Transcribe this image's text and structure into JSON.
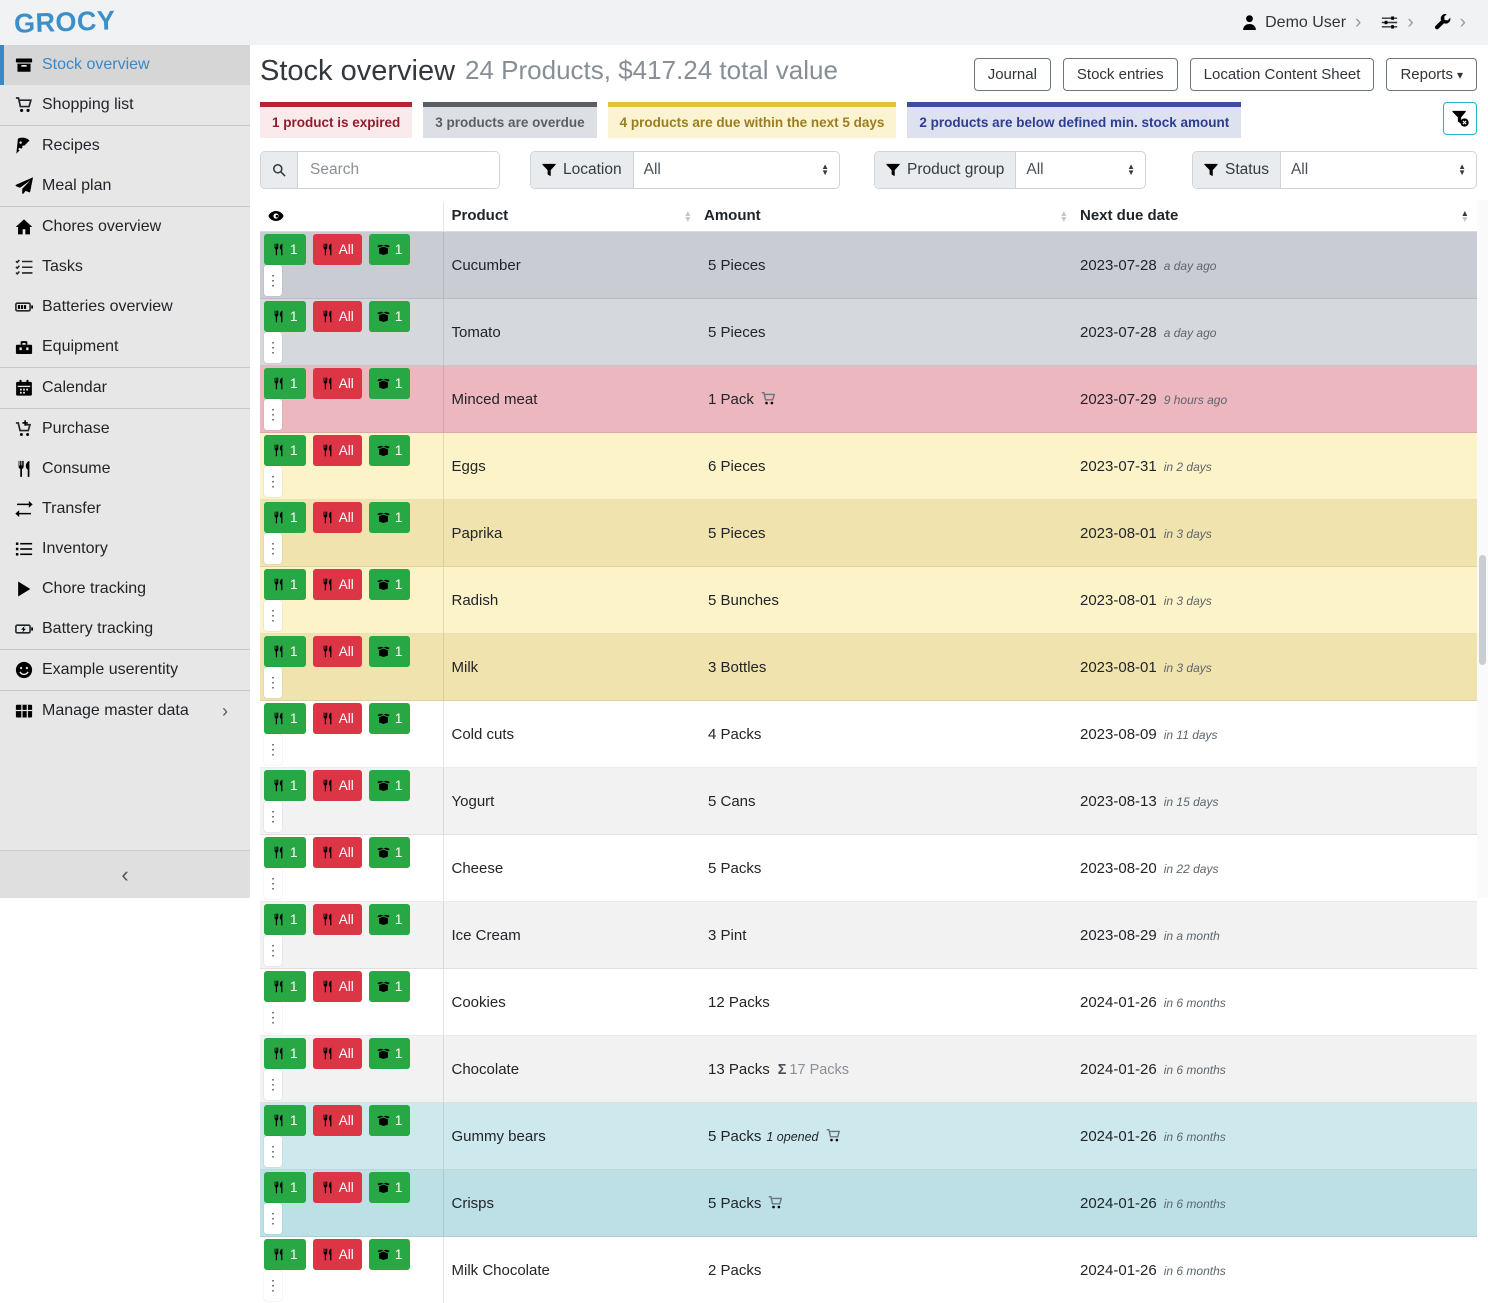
{
  "brand": {
    "name": "GROCY"
  },
  "glyphs": {
    "sigma": "Σ",
    "ellipsis": "⋮",
    "chevron": "›",
    "collapse": "‹",
    "caret_down": "▾",
    "caret_up_small": "▲",
    "caret_down_small": "▼"
  },
  "topbar": {
    "user_label": "Demo User"
  },
  "sidebar": {
    "items": [
      {
        "label": "Stock overview",
        "icon": "box-icon",
        "active": true
      },
      {
        "label": "Shopping list",
        "icon": "cart-icon",
        "divider_after": true
      },
      {
        "label": "Recipes",
        "icon": "pizza-icon"
      },
      {
        "label": "Meal plan",
        "icon": "paper-plane-icon",
        "divider_after": true
      },
      {
        "label": "Chores overview",
        "icon": "home-icon"
      },
      {
        "label": "Tasks",
        "icon": "checklist-icon"
      },
      {
        "label": "Batteries overview",
        "icon": "battery-icon"
      },
      {
        "label": "Equipment",
        "icon": "toolbox-icon",
        "divider_after": true
      },
      {
        "label": "Calendar",
        "icon": "calendar-icon",
        "divider_after": true
      },
      {
        "label": "Purchase",
        "icon": "cart-plus-icon"
      },
      {
        "label": "Consume",
        "icon": "utensils-icon"
      },
      {
        "label": "Transfer",
        "icon": "transfer-icon"
      },
      {
        "label": "Inventory",
        "icon": "list-icon"
      },
      {
        "label": "Chore tracking",
        "icon": "play-icon"
      },
      {
        "label": "Battery tracking",
        "icon": "battery-bolt-icon",
        "divider_after": true
      },
      {
        "label": "Example userentity",
        "icon": "smiley-icon",
        "divider_after": true
      },
      {
        "label": "Manage master data",
        "icon": "table-icon",
        "chevron": true
      }
    ]
  },
  "page": {
    "title": "Stock overview",
    "subtitle": "24 Products, $417.24 total value"
  },
  "actions": [
    {
      "label": "Journal"
    },
    {
      "label": "Stock entries"
    },
    {
      "label": "Location Content Sheet"
    },
    {
      "label": "Reports",
      "dropdown": true
    }
  ],
  "banners": [
    {
      "text": "1 product is expired",
      "border": "#b5242f",
      "bg": "#fbeaec",
      "color": "#8f1d2b"
    },
    {
      "text": "3 products are overdue",
      "border": "#595f64",
      "bg": "#dcdfe3",
      "color": "#575f66"
    },
    {
      "text": "4 products are due within the next 5 days",
      "border": "#e5c03d",
      "bg": "#fcf3d2",
      "color": "#9a7d22"
    },
    {
      "text": "2 products are below defined min. stock amount",
      "border": "#3c4f9e",
      "bg": "#dde1f0",
      "color": "#2c3e8d"
    }
  ],
  "clear_filter_color": "#1fb9c9",
  "filters": {
    "search_placeholder": "Search",
    "groups": [
      {
        "label": "Location",
        "value": "All"
      },
      {
        "label": "Product group",
        "value": "All"
      },
      {
        "label": "Status",
        "value": "All"
      }
    ]
  },
  "table": {
    "headers": [
      {
        "label": ""
      },
      {
        "label": "Product",
        "sort": "none"
      },
      {
        "label": "Amount",
        "sort": "none"
      },
      {
        "label": "Next due date",
        "sort": "asc"
      }
    ],
    "row_buttons": {
      "consume_one": "1",
      "consume_all": "All",
      "open_one": "1"
    },
    "rows": [
      {
        "product": "Cucumber",
        "amount": "5 Pieces",
        "date": "2023-07-28",
        "due": "a day ago",
        "bg": "#c9ccd2"
      },
      {
        "product": "Tomato",
        "amount": "5 Pieces",
        "date": "2023-07-28",
        "due": "a day ago",
        "bg": "#d5d8dd"
      },
      {
        "product": "Minced meat",
        "amount": "1 Pack",
        "cart": true,
        "date": "2023-07-29",
        "due": "9 hours ago",
        "bg": "#ecb7bf"
      },
      {
        "product": "Eggs",
        "amount": "6 Pieces",
        "date": "2023-07-31",
        "due": "in 2 days",
        "bg": "#fdf3c8"
      },
      {
        "product": "Paprika",
        "amount": "5 Pieces",
        "date": "2023-08-01",
        "due": "in 3 days",
        "bg": "#f1e3ae"
      },
      {
        "product": "Radish",
        "amount": "5 Bunches",
        "date": "2023-08-01",
        "due": "in 3 days",
        "bg": "#fdf3c8"
      },
      {
        "product": "Milk",
        "amount": "3 Bottles",
        "date": "2023-08-01",
        "due": "in 3 days",
        "bg": "#f1e3ae"
      },
      {
        "product": "Cold cuts",
        "amount": "4 Packs",
        "date": "2023-08-09",
        "due": "in 11 days",
        "bg": "#ffffff"
      },
      {
        "product": "Yogurt",
        "amount": "5 Cans",
        "date": "2023-08-13",
        "due": "in 15 days",
        "bg": "#f2f2f2"
      },
      {
        "product": "Cheese",
        "amount": "5 Packs",
        "date": "2023-08-20",
        "due": "in 22 days",
        "bg": "#ffffff"
      },
      {
        "product": "Ice Cream",
        "amount": "3 Pint",
        "date": "2023-08-29",
        "due": "in a month",
        "bg": "#f2f2f2"
      },
      {
        "product": "Cookies",
        "amount": "12 Packs",
        "date": "2024-01-26",
        "due": "in 6 months",
        "bg": "#ffffff"
      },
      {
        "product": "Chocolate",
        "amount": "13 Packs",
        "total": "17 Packs",
        "date": "2024-01-26",
        "due": "in 6 months",
        "bg": "#f2f2f2"
      },
      {
        "product": "Gummy bears",
        "amount": "5 Packs",
        "note": "1 opened",
        "cart": true,
        "date": "2024-01-26",
        "due": "in 6 months",
        "bg": "#cde9ed"
      },
      {
        "product": "Crisps",
        "amount": "5 Packs",
        "cart": true,
        "date": "2024-01-26",
        "due": "in 6 months",
        "bg": "#bce0e6"
      },
      {
        "product": "Milk Chocolate",
        "amount": "2 Packs",
        "date": "2024-01-26",
        "due": "in 6 months",
        "bg": "#ffffff"
      }
    ]
  }
}
